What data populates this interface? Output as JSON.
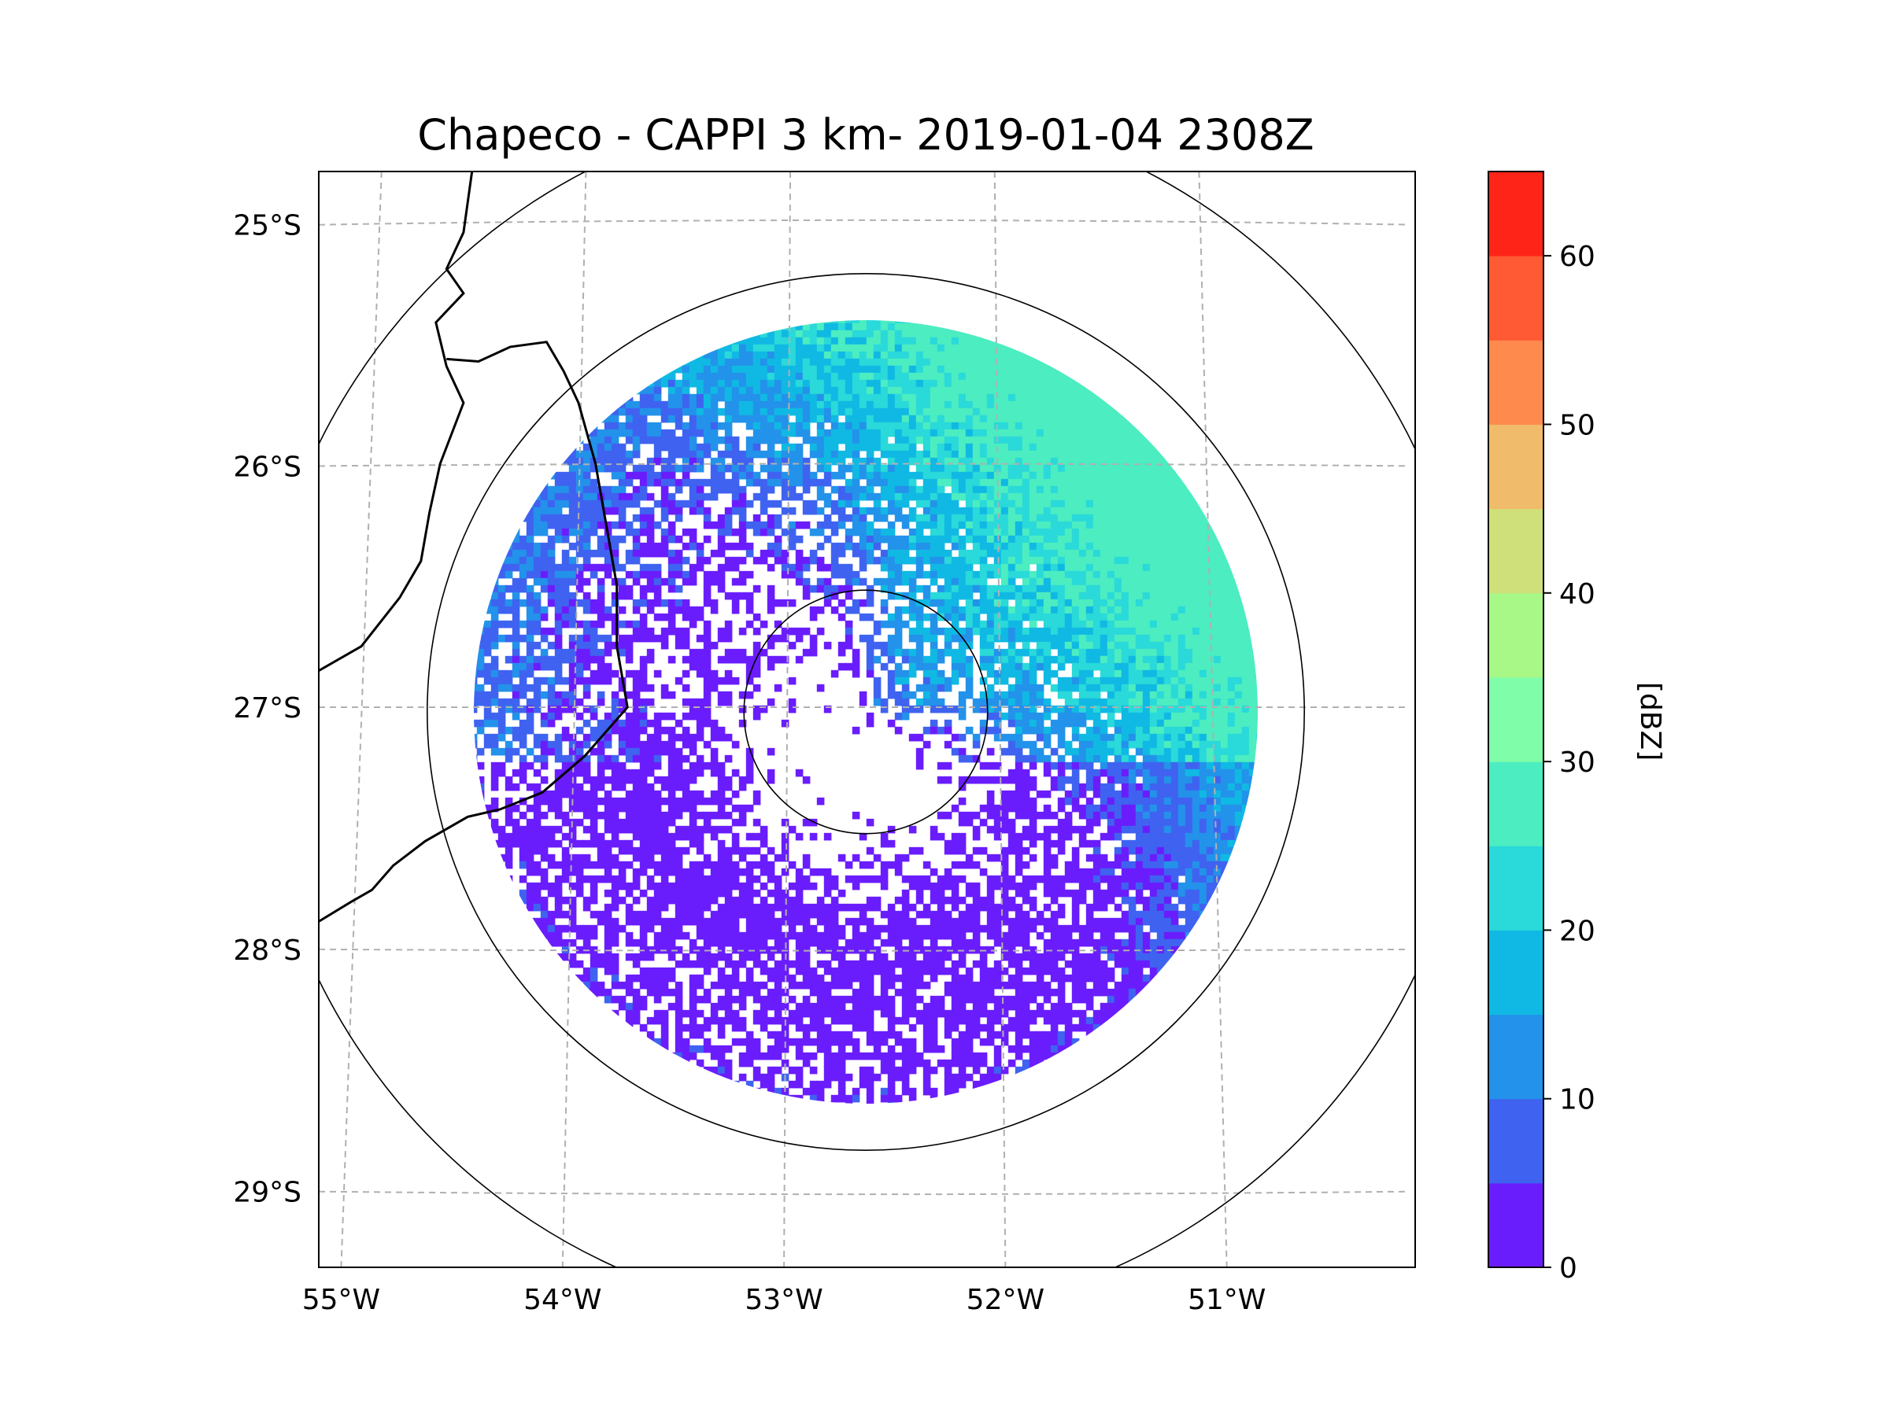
{
  "chart_data": {
    "type": "heatmap",
    "title": "Chapeco - CAPPI 3 km- 2019-01-04 2308Z",
    "map": {
      "projection": "radar-centered azimuthal",
      "lon_range": [
        -55.2,
        -50.05
      ],
      "lat_range": [
        -29.3,
        -24.8
      ],
      "x_ticks": [
        {
          "value": -55,
          "label": "55°W"
        },
        {
          "value": -54,
          "label": "54°W"
        },
        {
          "value": -53,
          "label": "53°W"
        },
        {
          "value": -52,
          "label": "52°W"
        },
        {
          "value": -51,
          "label": "51°W"
        }
      ],
      "y_ticks": [
        {
          "value": -25,
          "label": "25°S"
        },
        {
          "value": -26,
          "label": "26°S"
        },
        {
          "value": -27,
          "label": "27°S"
        },
        {
          "value": -28,
          "label": "28°S"
        },
        {
          "value": -29,
          "label": "29°S"
        }
      ],
      "gridlines": true,
      "radar_site": {
        "name": "Chapeco",
        "lon": -52.6,
        "lat": -27.0
      },
      "range_rings_deg": [
        0.5,
        1.8,
        2.5
      ],
      "coastline_borders": "political borders (Argentina / Brazil)"
    },
    "field": {
      "quantity": "reflectivity",
      "height": "3 km",
      "data_range_deg": 1.8,
      "pattern": "mostly 0-15 dBZ echoes; 20-30 dBZ band to north-east; near-zero (clear) center"
    },
    "colorbar": {
      "label": "[dBZ]",
      "min": 0,
      "max": 65,
      "step": 5,
      "tick_values": [
        0,
        10,
        20,
        30,
        40,
        50,
        60
      ],
      "tick_labels": [
        "0",
        "10",
        "20",
        "30",
        "40",
        "50",
        "60"
      ],
      "colors": [
        "#6a1dfc",
        "#3f63f0",
        "#2392ea",
        "#10b9e3",
        "#2ad9d9",
        "#4cedc0",
        "#80fda8",
        "#a8f887",
        "#cfe07a",
        "#f0bb6a",
        "#ff8a4e",
        "#ff5a33",
        "#ff2418"
      ]
    }
  }
}
